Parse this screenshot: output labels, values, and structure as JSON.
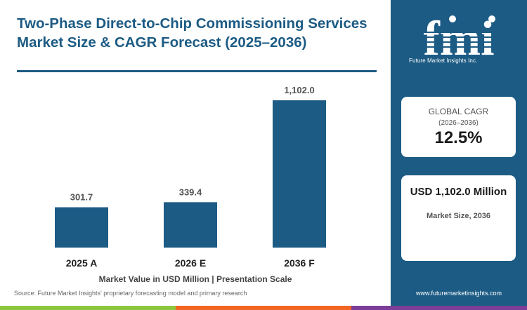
{
  "title": "Two-Phase Direct-to-Chip Commissioning Services Market Size & CAGR Forecast (2025–2036)",
  "chart_data": {
    "type": "bar",
    "categories": [
      "2025 A",
      "2026 E",
      "2036 F"
    ],
    "values": [
      301.7,
      339.4,
      1102.0
    ],
    "value_labels": [
      "301.7",
      "339.4",
      "1,102.0"
    ],
    "xlabel": "Market Value in USD Million | Presentation Scale",
    "ylim": [
      0,
      1102.0
    ],
    "grid": false,
    "colors": {
      "bar": "#1c5b84",
      "value_label": "#555555",
      "category_label": "#222222"
    }
  },
  "source": "Source: Future Market Insights' proprietary forecasting model and primary research",
  "sidebar": {
    "logo_letters": "fmi",
    "logo_tagline": "Future Market Insights Inc.",
    "cagr_label": "GLOBAL CAGR",
    "cagr_period": "(2026–2036)",
    "cagr_value": "12.5%",
    "size_value": "USD 1,102.0 Million",
    "size_label": "Market Size, 2036",
    "website": "www.futuremarketinsights.com"
  },
  "colors": {
    "brand_blue": "#1c5b84",
    "bottom_bar": [
      "#8dc63f",
      "#f26522",
      "#7b3f98"
    ]
  }
}
